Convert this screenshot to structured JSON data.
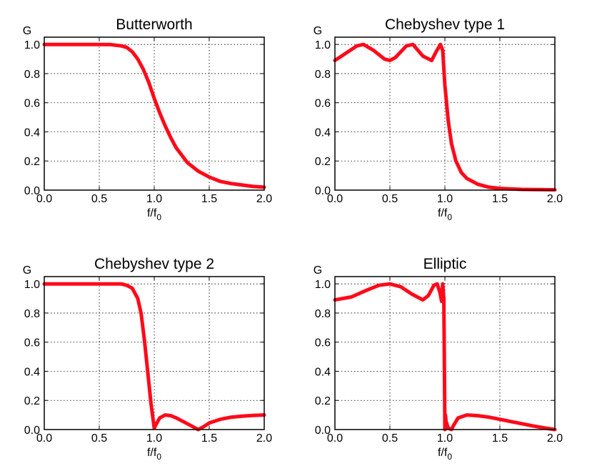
{
  "chart_data": [
    {
      "type": "line",
      "title": "Butterworth",
      "ylabel": "G",
      "xlabel": "f/f0",
      "xlim": [
        0,
        2
      ],
      "ylim": [
        0,
        1.05
      ],
      "xticks": [
        "0.0",
        "0.5",
        "1.0",
        "1.5",
        "2.0"
      ],
      "yticks": [
        "0.0",
        "0.2",
        "0.4",
        "0.6",
        "0.8",
        "1.0"
      ],
      "grid": true,
      "series": [
        {
          "color": "#ff0a1a",
          "x": [
            0,
            0.2,
            0.4,
            0.5,
            0.6,
            0.7,
            0.75,
            0.8,
            0.85,
            0.9,
            0.95,
            1.0,
            1.05,
            1.1,
            1.15,
            1.2,
            1.3,
            1.4,
            1.5,
            1.6,
            1.7,
            1.8,
            1.9,
            2.0
          ],
          "y": [
            1.0,
            1.0,
            1.0,
            1.0,
            0.999,
            0.99,
            0.98,
            0.95,
            0.9,
            0.83,
            0.74,
            0.63,
            0.53,
            0.44,
            0.36,
            0.29,
            0.19,
            0.13,
            0.09,
            0.06,
            0.045,
            0.035,
            0.025,
            0.02
          ]
        }
      ]
    },
    {
      "type": "line",
      "title": "Chebyshev type 1",
      "ylabel": "G",
      "xlabel": "f/f0",
      "xlim": [
        0,
        2
      ],
      "ylim": [
        0,
        1.05
      ],
      "xticks": [
        "0.0",
        "0.5",
        "1.0",
        "1.5",
        "2.0"
      ],
      "yticks": [
        "0.0",
        "0.2",
        "0.4",
        "0.6",
        "0.8",
        "1.0"
      ],
      "grid": true,
      "series": [
        {
          "color": "#ff0a1a",
          "x": [
            0,
            0.1,
            0.2,
            0.26,
            0.35,
            0.45,
            0.5,
            0.55,
            0.65,
            0.71,
            0.8,
            0.88,
            0.92,
            0.96,
            0.98,
            1.0,
            1.03,
            1.06,
            1.1,
            1.15,
            1.2,
            1.3,
            1.4,
            1.5,
            1.7,
            2.0
          ],
          "y": [
            0.89,
            0.94,
            0.99,
            1.0,
            0.96,
            0.9,
            0.89,
            0.91,
            0.99,
            1.0,
            0.92,
            0.89,
            0.95,
            1.0,
            0.96,
            0.72,
            0.48,
            0.32,
            0.2,
            0.12,
            0.08,
            0.04,
            0.02,
            0.012,
            0.005,
            0.002
          ]
        }
      ]
    },
    {
      "type": "line",
      "title": "Chebyshev type 2",
      "ylabel": "G",
      "xlabel": "f/f0",
      "xlim": [
        0,
        2
      ],
      "ylim": [
        0,
        1.05
      ],
      "xticks": [
        "0.0",
        "0.5",
        "1.0",
        "1.5",
        "2.0"
      ],
      "yticks": [
        "0.0",
        "0.2",
        "0.4",
        "0.6",
        "0.8",
        "1.0"
      ],
      "grid": true,
      "series": [
        {
          "color": "#ff0a1a",
          "x": [
            0,
            0.5,
            0.7,
            0.75,
            0.8,
            0.85,
            0.88,
            0.91,
            0.94,
            0.97,
            1.0,
            1.02,
            1.05,
            1.1,
            1.15,
            1.2,
            1.3,
            1.35,
            1.4,
            1.45,
            1.5,
            1.6,
            1.7,
            1.8,
            1.9,
            2.0
          ],
          "y": [
            1.0,
            1.0,
            1.0,
            0.99,
            0.97,
            0.9,
            0.8,
            0.62,
            0.4,
            0.18,
            0.01,
            0.04,
            0.08,
            0.1,
            0.095,
            0.08,
            0.04,
            0.02,
            0.0,
            0.02,
            0.045,
            0.07,
            0.085,
            0.092,
            0.097,
            0.1
          ]
        }
      ]
    },
    {
      "type": "line",
      "title": "Elliptic",
      "ylabel": "G",
      "xlabel": "f/f0",
      "xlim": [
        0,
        2
      ],
      "ylim": [
        0,
        1.05
      ],
      "xticks": [
        "0.0",
        "0.5",
        "1.0",
        "1.5",
        "2.0"
      ],
      "yticks": [
        "0.0",
        "0.2",
        "0.4",
        "0.6",
        "0.8",
        "1.0"
      ],
      "grid": true,
      "series": [
        {
          "color": "#ff0a1a",
          "x": [
            0,
            0.15,
            0.3,
            0.4,
            0.5,
            0.6,
            0.7,
            0.8,
            0.85,
            0.9,
            0.93,
            0.955,
            0.97,
            0.98,
            0.99,
            0.995,
            1.0,
            1.005,
            1.01,
            1.03,
            1.06,
            1.08,
            1.12,
            1.2,
            1.3,
            1.4,
            1.5,
            1.6,
            1.7,
            1.8,
            1.9,
            2.0
          ],
          "y": [
            0.89,
            0.91,
            0.96,
            0.99,
            1.0,
            0.98,
            0.93,
            0.89,
            0.92,
            0.99,
            1.0,
            0.94,
            0.88,
            1.0,
            0.9,
            0.5,
            0.0,
            0.1,
            0.06,
            0.01,
            0.0,
            0.03,
            0.08,
            0.1,
            0.095,
            0.085,
            0.07,
            0.055,
            0.04,
            0.025,
            0.012,
            0.0
          ]
        }
      ]
    }
  ]
}
